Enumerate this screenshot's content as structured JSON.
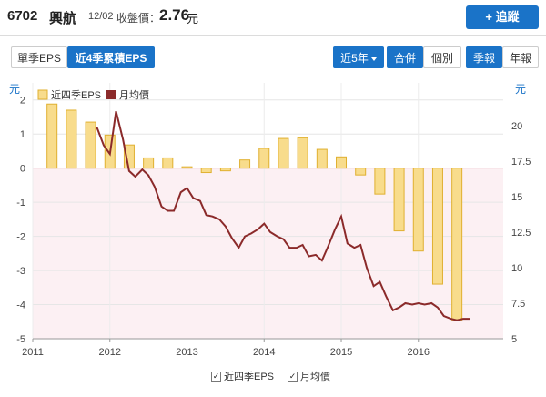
{
  "header": {
    "code": "6702",
    "name": "興航",
    "date": "12/02",
    "close_label": "收盤價：",
    "price": "2.76",
    "price_unit": "元",
    "track_button": "+ 追蹤"
  },
  "tabs": {
    "single_quarter": "單季EPS",
    "trailing_four": "近4季累積EPS",
    "period": "近5年",
    "consolidated": "合併",
    "individual": "個別",
    "quarterly": "季報",
    "annual": "年報"
  },
  "legend_bottom": {
    "eps": "近四季EPS",
    "price": "月均價"
  },
  "colors": {
    "bar_fill": "#f8dc8c",
    "bar_stroke": "#e0b030",
    "line": "#8b2a2a",
    "accent": "#1a73c8",
    "negative_bg": "#fcf0f3"
  },
  "chart_data": {
    "type": "bar",
    "left_unit": "元",
    "right_unit": "元",
    "legend": [
      "近四季EPS",
      "月均價"
    ],
    "legend_placement": "top-left",
    "xlim": [
      2011,
      2017.1
    ],
    "ylim_left": [
      -5,
      2.5
    ],
    "ylim_right": [
      5,
      23
    ],
    "x_ticks": [
      "2011",
      "2012",
      "2013",
      "2014",
      "2015",
      "2016"
    ],
    "y_ticks_left": [
      "2",
      "1",
      "0",
      "-1",
      "-2",
      "-3",
      "-4",
      "-5"
    ],
    "y_ticks_right": [
      "20",
      "17.5",
      "15",
      "12.5",
      "10",
      "7.5",
      "5"
    ],
    "grid": true,
    "series": [
      {
        "name": "近四季EPS",
        "axis": "left",
        "type": "bar",
        "x": [
          2011.25,
          2011.5,
          2011.75,
          2012.0,
          2012.25,
          2012.5,
          2012.75,
          2013.0,
          2013.25,
          2013.5,
          2013.75,
          2014.0,
          2014.25,
          2014.5,
          2014.75,
          2015.0,
          2015.25,
          2015.5,
          2015.75,
          2016.0,
          2016.25,
          2016.5
        ],
        "values": [
          1.88,
          1.7,
          1.35,
          0.97,
          0.68,
          0.3,
          0.3,
          0.04,
          -0.13,
          -0.08,
          0.24,
          0.58,
          0.87,
          0.89,
          0.55,
          0.33,
          -0.2,
          -0.76,
          -1.84,
          -2.43,
          -3.4,
          -4.45
        ]
      },
      {
        "name": "月均價",
        "axis": "right",
        "type": "line",
        "x": [
          2011.83,
          2011.92,
          2012.0,
          2012.08,
          2012.17,
          2012.25,
          2012.33,
          2012.42,
          2012.5,
          2012.58,
          2012.67,
          2012.75,
          2012.83,
          2012.92,
          2013.0,
          2013.08,
          2013.17,
          2013.25,
          2013.33,
          2013.42,
          2013.5,
          2013.58,
          2013.67,
          2013.75,
          2013.83,
          2013.92,
          2014.0,
          2014.08,
          2014.17,
          2014.25,
          2014.33,
          2014.42,
          2014.5,
          2014.58,
          2014.67,
          2014.75,
          2014.83,
          2014.92,
          2015.0,
          2015.08,
          2015.17,
          2015.25,
          2015.33,
          2015.42,
          2015.5,
          2015.58,
          2015.67,
          2015.75,
          2015.83,
          2015.92,
          2016.0,
          2016.08,
          2016.17,
          2016.25,
          2016.33,
          2016.42,
          2016.5,
          2016.58,
          2016.67
        ],
        "values": [
          19.9,
          18.6,
          18.0,
          21.0,
          19.0,
          16.8,
          16.4,
          16.9,
          16.5,
          15.7,
          14.3,
          14.0,
          14.0,
          15.3,
          15.6,
          14.9,
          14.7,
          13.7,
          13.6,
          13.4,
          12.9,
          12.1,
          11.4,
          12.2,
          12.4,
          12.7,
          13.1,
          12.5,
          12.2,
          12.0,
          11.4,
          11.4,
          11.6,
          10.8,
          10.9,
          10.5,
          11.5,
          12.7,
          13.6,
          11.7,
          11.4,
          11.6,
          10.0,
          8.7,
          9.0,
          8.0,
          7.0,
          7.2,
          7.5,
          7.4,
          7.5,
          7.4,
          7.5,
          7.2,
          6.6,
          6.4,
          6.3,
          6.4,
          6.4
        ]
      }
    ]
  }
}
